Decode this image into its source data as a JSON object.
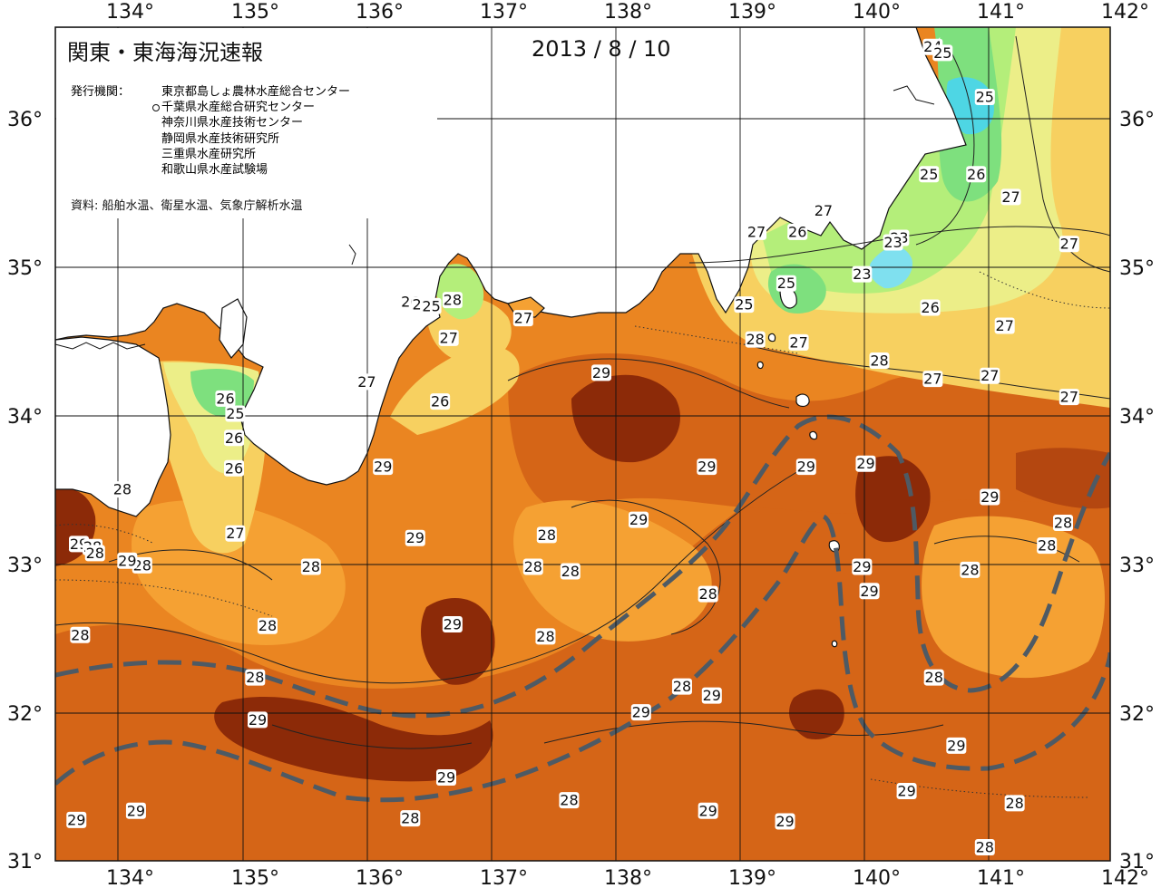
{
  "header": {
    "title": "関東・東海海況速報",
    "date": "2013 / 8 / 10"
  },
  "issuers": {
    "label": "発行機関：",
    "items": [
      "東京都島しょ農林水産総合センター",
      "千葉県水産総合研究センター",
      "神奈川県水産技術センター",
      "静岡県水産技術研究所",
      "三重県水産研究所",
      "和歌山県水産試験場"
    ]
  },
  "source_note": "資料: 船舶水温、衛星水温、気象庁解析水温",
  "axes": {
    "lon_ticks": [
      "134°",
      "135°",
      "136°",
      "137°",
      "138°",
      "139°",
      "140°",
      "141°",
      "142°"
    ],
    "lat_ticks": [
      "31°",
      "32°",
      "33°",
      "34°",
      "35°",
      "36°"
    ]
  },
  "map_data": {
    "type": "sea-surface-temperature-contour-map",
    "region": "Kanto-Tokai",
    "lon_range": [
      133.5,
      142
    ],
    "lat_range": [
      31,
      36.5
    ],
    "colors": {
      "land": "#ffffff",
      "t23": "#7fe0ef",
      "t24": "#4ed6e4",
      "t25": "#7ee07e",
      "t26": "#b4ee7a",
      "t27": "#ecee88",
      "t27_5": "#f7d060",
      "t28": "#f5a133",
      "t28_5": "#ea8521",
      "t29": "#d56517",
      "t29_5": "#b44710",
      "t30": "#8c2a08",
      "kuroshio_path": "#4e5a64"
    },
    "contour_labels": [
      {
        "text": "24",
        "lon": 140.57,
        "lat": 36.37
      },
      {
        "text": "25",
        "lon": 140.65,
        "lat": 36.33
      },
      {
        "text": "25",
        "lon": 140.99,
        "lat": 36.04
      },
      {
        "text": "25",
        "lon": 140.54,
        "lat": 35.53
      },
      {
        "text": "26",
        "lon": 140.92,
        "lat": 35.53
      },
      {
        "text": "27",
        "lon": 141.2,
        "lat": 35.38
      },
      {
        "text": "27",
        "lon": 141.67,
        "lat": 35.07
      },
      {
        "text": "23",
        "lon": 140.3,
        "lat": 35.11
      },
      {
        "text": "23",
        "lon": 140.25,
        "lat": 35.08
      },
      {
        "text": "23",
        "lon": 140.0,
        "lat": 34.87
      },
      {
        "text": "27",
        "lon": 139.69,
        "lat": 35.29
      },
      {
        "text": "26",
        "lon": 139.48,
        "lat": 35.15
      },
      {
        "text": "27",
        "lon": 139.15,
        "lat": 35.15
      },
      {
        "text": "25",
        "lon": 139.39,
        "lat": 34.81
      },
      {
        "text": "25",
        "lon": 139.05,
        "lat": 34.67
      },
      {
        "text": "26",
        "lon": 140.55,
        "lat": 34.65
      },
      {
        "text": "27",
        "lon": 141.15,
        "lat": 34.53
      },
      {
        "text": "28",
        "lon": 139.14,
        "lat": 34.44
      },
      {
        "text": "27",
        "lon": 139.49,
        "lat": 34.42
      },
      {
        "text": "28",
        "lon": 140.14,
        "lat": 34.3
      },
      {
        "text": "27",
        "lon": 140.57,
        "lat": 34.18
      },
      {
        "text": "27",
        "lon": 141.03,
        "lat": 34.2
      },
      {
        "text": "27",
        "lon": 141.67,
        "lat": 34.06
      },
      {
        "text": "27",
        "lon": 137.27,
        "lat": 34.58
      },
      {
        "text": "29",
        "lon": 137.9,
        "lat": 34.22
      },
      {
        "text": "26",
        "lon": 136.36,
        "lat": 34.69
      },
      {
        "text": "26",
        "lon": 136.45,
        "lat": 34.67
      },
      {
        "text": "25",
        "lon": 136.53,
        "lat": 34.66
      },
      {
        "text": "28",
        "lon": 136.7,
        "lat": 34.7
      },
      {
        "text": "27",
        "lon": 136.67,
        "lat": 34.45
      },
      {
        "text": "27",
        "lon": 136.01,
        "lat": 34.16
      },
      {
        "text": "26",
        "lon": 136.6,
        "lat": 34.03
      },
      {
        "text": "26",
        "lon": 134.87,
        "lat": 34.05
      },
      {
        "text": "25",
        "lon": 134.95,
        "lat": 33.95
      },
      {
        "text": "26",
        "lon": 134.94,
        "lat": 33.79
      },
      {
        "text": "26",
        "lon": 134.94,
        "lat": 33.59
      },
      {
        "text": "29",
        "lon": 136.14,
        "lat": 33.6
      },
      {
        "text": "29",
        "lon": 138.75,
        "lat": 33.6
      },
      {
        "text": "29",
        "lon": 139.55,
        "lat": 33.6
      },
      {
        "text": "29",
        "lon": 140.03,
        "lat": 33.62
      },
      {
        "text": "29",
        "lon": 141.03,
        "lat": 33.4
      },
      {
        "text": "28",
        "lon": 134.04,
        "lat": 33.45
      },
      {
        "text": "27",
        "lon": 134.95,
        "lat": 33.16
      },
      {
        "text": "29",
        "lon": 136.4,
        "lat": 33.13
      },
      {
        "text": "28",
        "lon": 137.46,
        "lat": 33.15
      },
      {
        "text": "29",
        "lon": 138.2,
        "lat": 33.25
      },
      {
        "text": "28",
        "lon": 141.62,
        "lat": 33.23
      },
      {
        "text": "28",
        "lon": 141.49,
        "lat": 33.08
      },
      {
        "text": "28",
        "lon": 134.2,
        "lat": 32.95
      },
      {
        "text": "29",
        "lon": 133.69,
        "lat": 33.09
      },
      {
        "text": "28",
        "lon": 133.8,
        "lat": 33.07
      },
      {
        "text": "28",
        "lon": 133.82,
        "lat": 33.03
      },
      {
        "text": "29",
        "lon": 134.08,
        "lat": 32.98
      },
      {
        "text": "28",
        "lon": 135.56,
        "lat": 32.94
      },
      {
        "text": "28",
        "lon": 137.35,
        "lat": 32.94
      },
      {
        "text": "28",
        "lon": 137.65,
        "lat": 32.91
      },
      {
        "text": "29",
        "lon": 140.0,
        "lat": 32.94
      },
      {
        "text": "28",
        "lon": 140.87,
        "lat": 32.92
      },
      {
        "text": "29",
        "lon": 140.06,
        "lat": 32.78
      },
      {
        "text": "28",
        "lon": 138.76,
        "lat": 32.76
      },
      {
        "text": "28",
        "lon": 135.21,
        "lat": 32.55
      },
      {
        "text": "29",
        "lon": 136.7,
        "lat": 32.56
      },
      {
        "text": "28",
        "lon": 137.45,
        "lat": 32.48
      },
      {
        "text": "28",
        "lon": 133.7,
        "lat": 32.49
      },
      {
        "text": "28",
        "lon": 135.11,
        "lat": 32.21
      },
      {
        "text": "28",
        "lon": 140.58,
        "lat": 32.21
      },
      {
        "text": "28",
        "lon": 138.55,
        "lat": 32.15
      },
      {
        "text": "29",
        "lon": 138.79,
        "lat": 32.09
      },
      {
        "text": "29",
        "lon": 138.22,
        "lat": 31.98
      },
      {
        "text": "29",
        "lon": 135.13,
        "lat": 31.93
      },
      {
        "text": "29",
        "lon": 140.76,
        "lat": 31.76
      },
      {
        "text": "29",
        "lon": 136.65,
        "lat": 31.55
      },
      {
        "text": "29",
        "lon": 140.36,
        "lat": 31.46
      },
      {
        "text": "28",
        "lon": 137.64,
        "lat": 31.4
      },
      {
        "text": "28",
        "lon": 141.23,
        "lat": 31.38
      },
      {
        "text": "29",
        "lon": 134.15,
        "lat": 31.33
      },
      {
        "text": "29",
        "lon": 133.67,
        "lat": 31.27
      },
      {
        "text": "29",
        "lon": 138.76,
        "lat": 31.33
      },
      {
        "text": "29",
        "lon": 139.38,
        "lat": 31.26
      },
      {
        "text": "28",
        "lon": 136.36,
        "lat": 31.28
      },
      {
        "text": "28",
        "lon": 140.99,
        "lat": 31.09
      }
    ]
  }
}
